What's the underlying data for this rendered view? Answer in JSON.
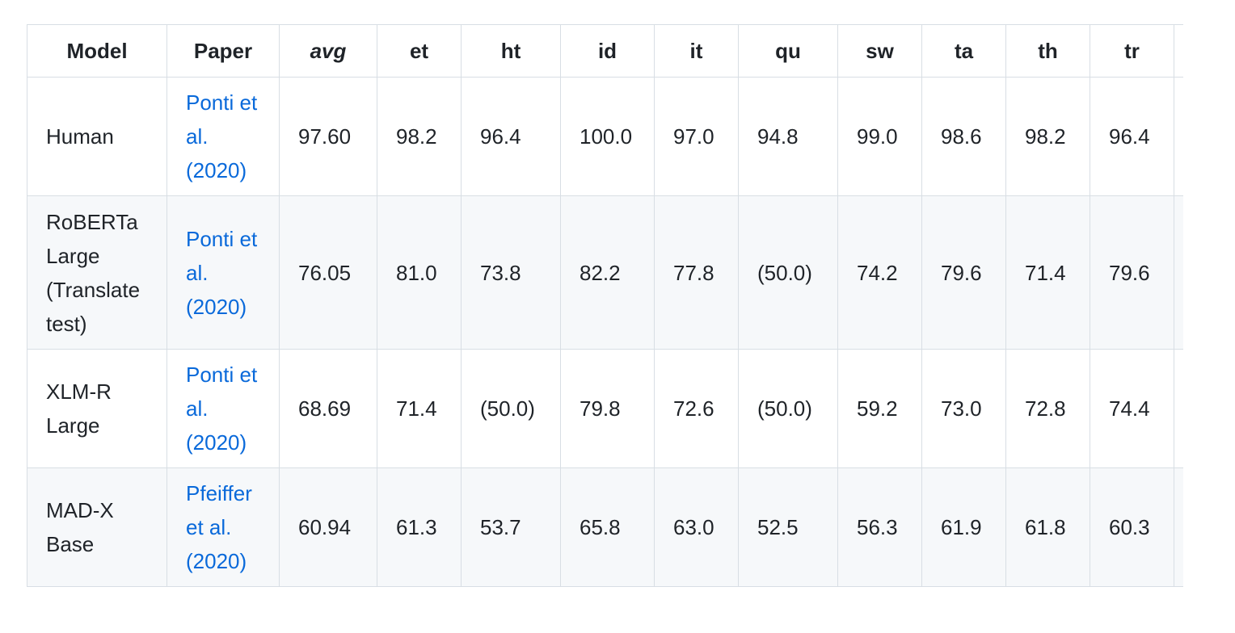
{
  "table": {
    "headers": {
      "model": "Model",
      "paper": "Paper",
      "avg": "avg",
      "et": "et",
      "ht": "ht",
      "id": "id",
      "it": "it",
      "qu": "qu",
      "sw": "sw",
      "ta": "ta",
      "th": "th",
      "tr": "tr"
    },
    "rows": [
      {
        "model": "Human",
        "paper": "Ponti et al. (2020)",
        "avg": "97.60",
        "et": "98.2",
        "ht": "96.4",
        "id": "100.0",
        "it": "97.0",
        "qu": "94.8",
        "sw": "99.0",
        "ta": "98.6",
        "th": "98.2",
        "tr": "96.4"
      },
      {
        "model": "RoBERTa Large (Translate test)",
        "paper": "Ponti et al. (2020)",
        "avg": "76.05",
        "et": "81.0",
        "ht": "73.8",
        "id": "82.2",
        "it": "77.8",
        "qu": "(50.0)",
        "sw": "74.2",
        "ta": "79.6",
        "th": "71.4",
        "tr": "79.6"
      },
      {
        "model": "XLM-R Large",
        "paper": "Ponti et al. (2020)",
        "avg": "68.69",
        "et": "71.4",
        "ht": "(50.0)",
        "id": "79.8",
        "it": "72.6",
        "qu": "(50.0)",
        "sw": "59.2",
        "ta": "73.0",
        "th": "72.8",
        "tr": "74.4"
      },
      {
        "model": "MAD-X Base",
        "paper": "Pfeiffer et al. (2020)",
        "avg": "60.94",
        "et": "61.3",
        "ht": "53.7",
        "id": "65.8",
        "it": "63.0",
        "qu": "52.5",
        "sw": "56.3",
        "ta": "61.9",
        "th": "61.8",
        "tr": "60.3"
      }
    ]
  },
  "colors": {
    "link": "#0969da",
    "border": "#d8dee4",
    "stripe": "#f6f8fa",
    "text": "#1f2328"
  }
}
